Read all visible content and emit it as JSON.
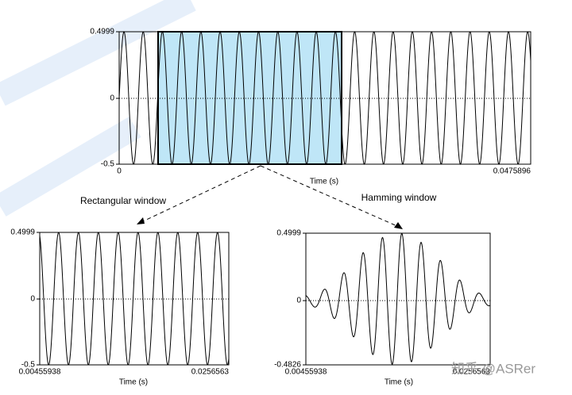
{
  "top_plot": {
    "y_labels": [
      "0.4999",
      "0",
      "-0.5"
    ],
    "x_labels": [
      "0",
      "0.0475896"
    ],
    "x_axis_label": "Time (s)"
  },
  "left_plot": {
    "caption": "Rectangular window",
    "y_labels": [
      "0.4999",
      "0",
      "-0.5"
    ],
    "x_labels": [
      "0.00455938",
      "0.0256563"
    ],
    "x_axis_label": "Time (s)"
  },
  "right_plot": {
    "caption": "Hamming window",
    "y_labels": [
      "0.4999",
      "0",
      "-0.4826"
    ],
    "x_labels": [
      "0.00455938",
      "0.0256563"
    ],
    "x_axis_label": "Time (s)"
  },
  "watermark": "知乎 @ASRer"
}
